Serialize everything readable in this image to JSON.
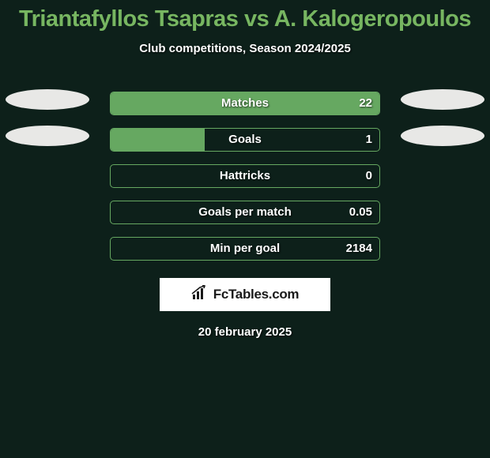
{
  "title": {
    "text": "Triantafyllos Tsapras vs A. Kalogeropoulos",
    "color": "#77b661",
    "fontsize": 29
  },
  "subtitle": "Club competitions, Season 2024/2025",
  "background_color": "#0d201a",
  "bar_border_color": "#66a861",
  "bar_fill_color": "#66a861",
  "avatar": {
    "left_color": "#e8e8e6",
    "right_color": "#e8e8e6",
    "show_rows": [
      0,
      1
    ]
  },
  "stats": [
    {
      "label": "Matches",
      "value": "22",
      "fill_pct": 100,
      "fill_side": "left"
    },
    {
      "label": "Goals",
      "value": "1",
      "fill_pct": 35,
      "fill_side": "left"
    },
    {
      "label": "Hattricks",
      "value": "0",
      "fill_pct": 0,
      "fill_side": "left"
    },
    {
      "label": "Goals per match",
      "value": "0.05",
      "fill_pct": 0,
      "fill_side": "left"
    },
    {
      "label": "Min per goal",
      "value": "2184",
      "fill_pct": 0,
      "fill_side": "left"
    }
  ],
  "logo": {
    "text": "FcTables.com"
  },
  "date": "20 february 2025"
}
